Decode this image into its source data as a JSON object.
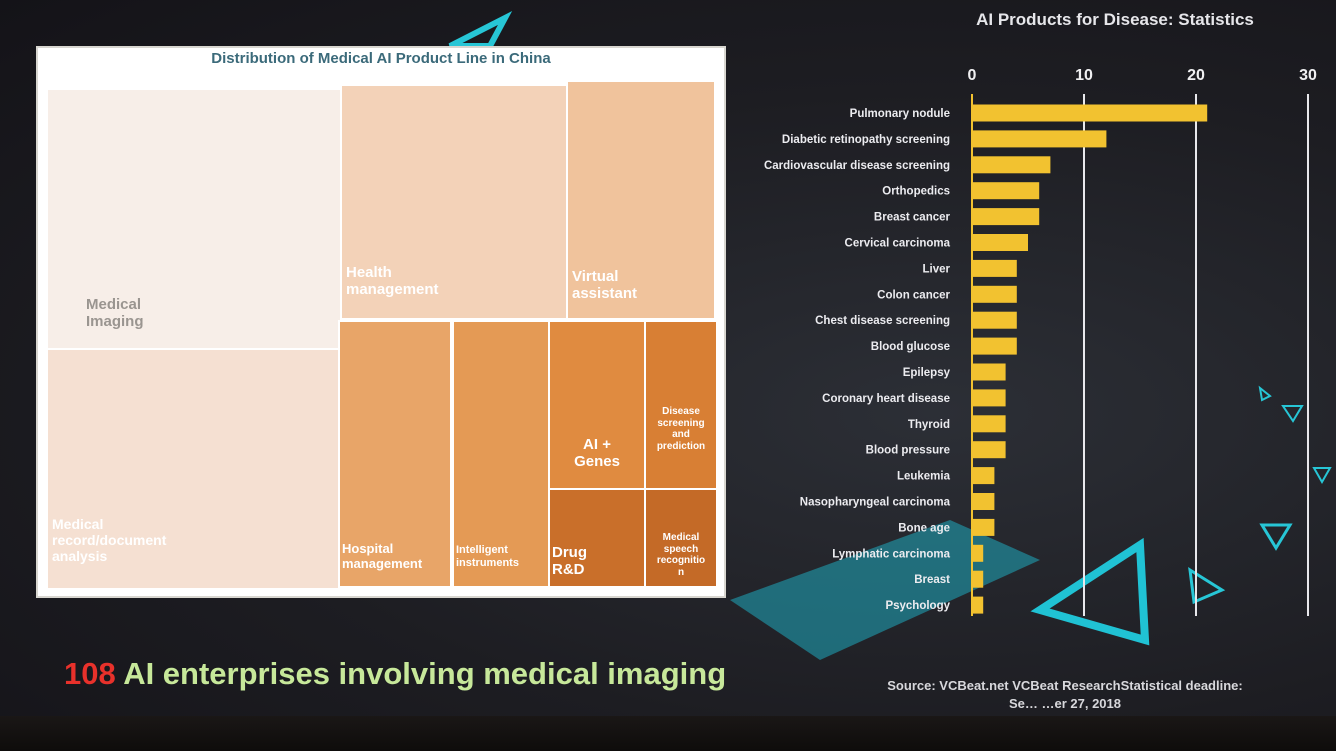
{
  "treemap": {
    "title": "Distribution of Medical AI Product Line in China",
    "tiles": [
      {
        "label": "Medical\nImaging",
        "color": "#f7eee8"
      },
      {
        "label": "Medical\nrecord/document\nanalysis",
        "color": "#f5e0d2"
      },
      {
        "label": "Health\nmanagement",
        "color": "#f3d2b8"
      },
      {
        "label": "Virtual\nassistant",
        "color": "#f0c39c"
      },
      {
        "label": "Hospital\nmanagement",
        "color": "#e8a568"
      },
      {
        "label": "Intelligent\ninstruments",
        "color": "#e49a55"
      },
      {
        "label": "AI +\nGenes",
        "color": "#e08b40"
      },
      {
        "label": "Disease\nscreening\nand\nprediction",
        "color": "#d87f34"
      },
      {
        "label": "Drug\nR&D",
        "color": "#c96f2a"
      },
      {
        "label": "Medical\nspeech\nrecognitio\nn",
        "color": "#c46a27"
      }
    ]
  },
  "chart_data": {
    "type": "bar",
    "orientation": "horizontal",
    "title": "AI Products for Disease: Statistics",
    "categories": [
      "Pulmonary nodule",
      "Diabetic retinopathy screening",
      "Cardiovascular disease screening",
      "Orthopedics",
      "Breast cancer",
      "Cervical carcinoma",
      "Liver",
      "Colon cancer",
      "Chest disease screening",
      "Blood glucose",
      "Epilepsy",
      "Coronary heart disease",
      "Thyroid",
      "Blood pressure",
      "Leukemia",
      "Nasopharyngeal carcinoma",
      "Bone age",
      "Lymphatic carcinoma",
      "Breast",
      "Psychology"
    ],
    "values": [
      21,
      12,
      7,
      6,
      6,
      5,
      4,
      4,
      4,
      4,
      3,
      3,
      3,
      3,
      2,
      2,
      2,
      1,
      1,
      1
    ],
    "xlim": [
      0,
      30
    ],
    "ticks": [
      "0",
      "10",
      "20",
      "30"
    ],
    "grid": true,
    "bar_color": "#f2c230"
  },
  "headline": {
    "number": "108",
    "text": " AI enterprises involving medical imaging"
  },
  "source": {
    "line1": "Source: VCBeat.net VCBeat ResearchStatistical deadline:",
    "line2": "Se… …er 27, 2018"
  }
}
